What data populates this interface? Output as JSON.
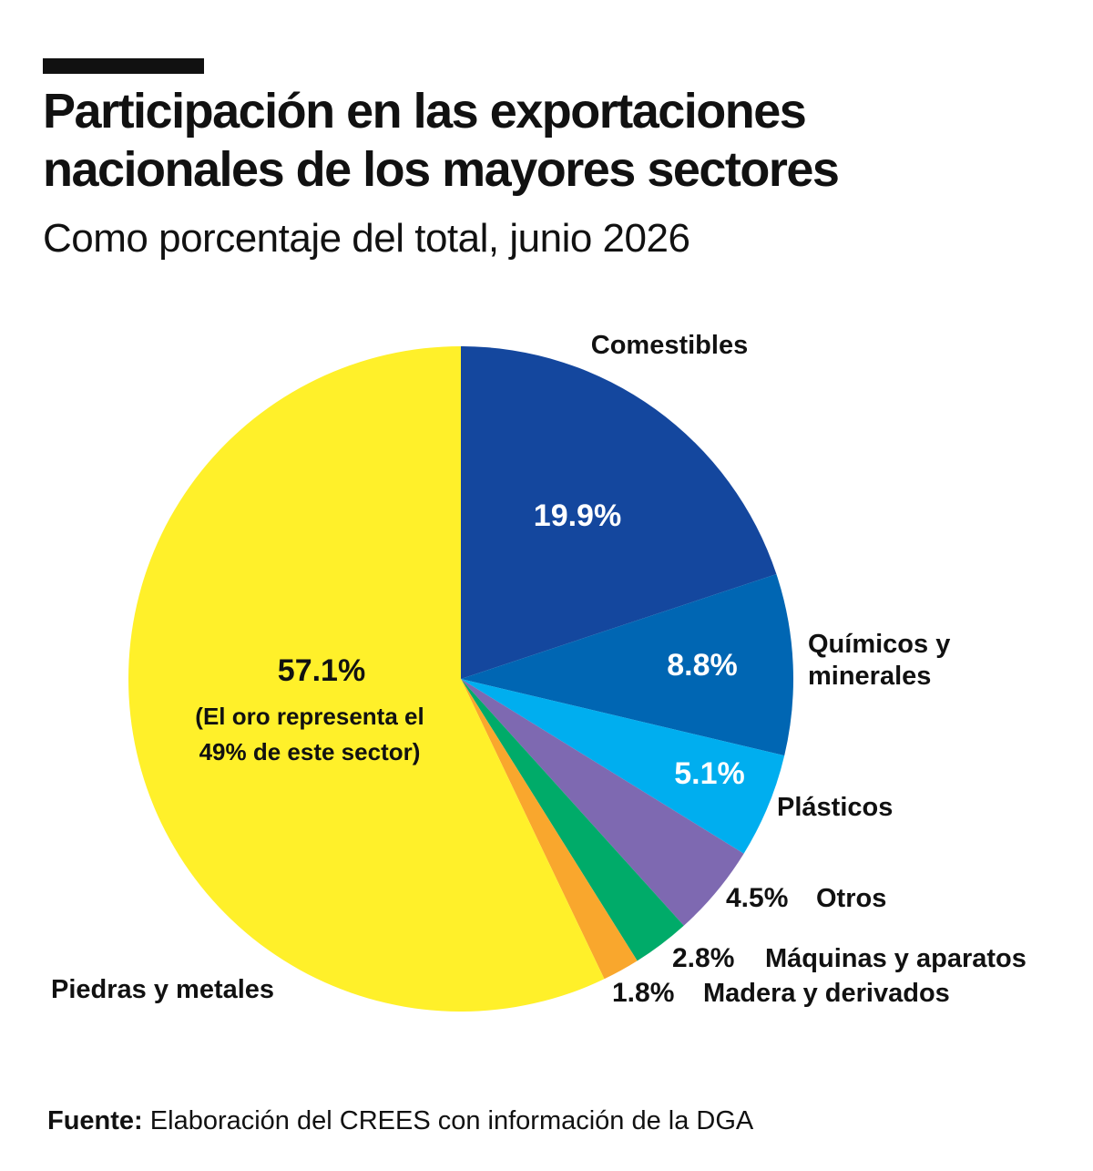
{
  "title_line1": "Participación en las exportaciones",
  "title_line2": "nacionales de los mayores sectores",
  "subtitle": "Como porcentaje del total, junio 2026",
  "source_label": "Fuente:",
  "source_text": "Elaboración del CREES con información de la DGA",
  "chart_data": {
    "type": "pie",
    "unit": "%",
    "slices": [
      {
        "category": "Comestibles",
        "value": 19.9,
        "value_label": "19.9%",
        "color": "#14479e"
      },
      {
        "category": "Químicos y minerales",
        "value": 8.8,
        "value_label": "8.8%",
        "color": "#0066b3"
      },
      {
        "category": "Plásticos",
        "value": 5.1,
        "value_label": "5.1%",
        "color": "#00aeef"
      },
      {
        "category": "Otros",
        "value": 4.5,
        "value_label": "4.5%",
        "color": "#7e69b1"
      },
      {
        "category": "Máquinas y aparatos",
        "value": 2.8,
        "value_label": "2.8%",
        "color": "#00ab69"
      },
      {
        "category": "Madera y derivados",
        "value": 1.8,
        "value_label": "1.8%",
        "color": "#f9a72d"
      },
      {
        "category": "Piedras y metales",
        "value": 57.1,
        "value_label": "57.1%",
        "color": "#fff02a",
        "annotation": [
          "(El oro representa el",
          "49% de este sector)"
        ]
      }
    ]
  }
}
